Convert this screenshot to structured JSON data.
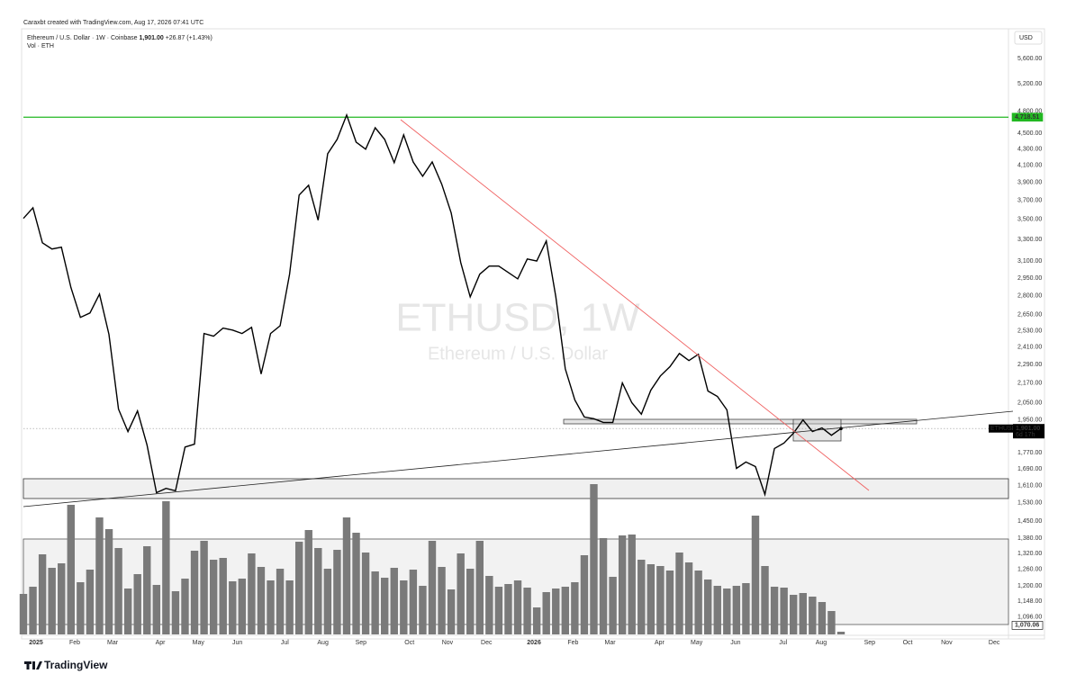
{
  "header": "Caraxbt created with TradingView.com, Aug 17, 2026 07:41 UTC",
  "footer": "TradingView",
  "chart_data": {
    "type": "line",
    "title": "Ethereum / U.S. Dollar · 1W · Coinbase",
    "last": "1,901.00",
    "change": "+26.87 (+1.43%)",
    "watermark": "ETHUSD, 1W",
    "watermark_subtitle": "Ethereum / U.S. Dollar",
    "currency": "USD",
    "log_scale": true,
    "ylim": [
      1042,
      6140
    ],
    "yticks": [
      {
        "value": 5600,
        "label": "5,600.00"
      },
      {
        "value": 5200,
        "label": "5,200.00"
      },
      {
        "value": 4800,
        "label": "4,800.00"
      },
      {
        "value": 4500,
        "label": "4,500.00"
      },
      {
        "value": 4300,
        "label": "4,300.00"
      },
      {
        "value": 4100,
        "label": "4,100.00"
      },
      {
        "value": 3900,
        "label": "3,900.00"
      },
      {
        "value": 3700,
        "label": "3,700.00"
      },
      {
        "value": 3500,
        "label": "3,500.00"
      },
      {
        "value": 3300,
        "label": "3,300.00"
      },
      {
        "value": 3100,
        "label": "3,100.00"
      },
      {
        "value": 2950,
        "label": "2,950.00"
      },
      {
        "value": 2800,
        "label": "2,800.00"
      },
      {
        "value": 2650,
        "label": "2,650.00"
      },
      {
        "value": 2530,
        "label": "2,530.00"
      },
      {
        "value": 2410,
        "label": "2,410.00"
      },
      {
        "value": 2290,
        "label": "2,290.00"
      },
      {
        "value": 2170,
        "label": "2,170.00"
      },
      {
        "value": 2050,
        "label": "2,050.00"
      },
      {
        "value": 1950,
        "label": "1,950.00"
      },
      {
        "value": 1770,
        "label": "1,770.00"
      },
      {
        "value": 1690,
        "label": "1,690.00"
      },
      {
        "value": 1610,
        "label": "1,610.00"
      },
      {
        "value": 1530,
        "label": "1,530.00"
      },
      {
        "value": 1450,
        "label": "1,450.00"
      },
      {
        "value": 1380,
        "label": "1,380.00"
      },
      {
        "value": 1320,
        "label": "1,320.00"
      },
      {
        "value": 1260,
        "label": "1,260.00"
      },
      {
        "value": 1200,
        "label": "1,200.00"
      },
      {
        "value": 1148,
        "label": "1,148.00"
      },
      {
        "value": 1096,
        "label": "1,096.00"
      }
    ],
    "xlim": [
      0,
      103.6
    ],
    "xticks": [
      {
        "value": 1.33,
        "label": "2025"
      },
      {
        "value": 5.4,
        "label": "Feb"
      },
      {
        "value": 9.38,
        "label": "Mar"
      },
      {
        "value": 14.4,
        "label": "Apr"
      },
      {
        "value": 18.4,
        "label": "May"
      },
      {
        "value": 22.5,
        "label": "Jun"
      },
      {
        "value": 27.5,
        "label": "Jul"
      },
      {
        "value": 31.5,
        "label": "Aug"
      },
      {
        "value": 35.5,
        "label": "Sep"
      },
      {
        "value": 40.6,
        "label": "Oct"
      },
      {
        "value": 44.6,
        "label": "Nov"
      },
      {
        "value": 48.7,
        "label": "Dec"
      },
      {
        "value": 53.7,
        "label": "2026"
      },
      {
        "value": 57.8,
        "label": "Feb"
      },
      {
        "value": 61.7,
        "label": "Mar"
      },
      {
        "value": 66.9,
        "label": "Apr"
      },
      {
        "value": 70.8,
        "label": "May"
      },
      {
        "value": 74.9,
        "label": "Jun"
      },
      {
        "value": 79.9,
        "label": "Jul"
      },
      {
        "value": 83.9,
        "label": "Aug"
      },
      {
        "value": 89.0,
        "label": "Sep"
      },
      {
        "value": 93.0,
        "label": "Oct"
      },
      {
        "value": 97.1,
        "label": "Nov"
      },
      {
        "value": 102.1,
        "label": "Dec"
      }
    ],
    "y2lim": [
      0,
      180
    ],
    "series": [
      {
        "name": "ETHUSD",
        "color": "#000000",
        "values": [
          3511,
          3622,
          3270,
          3211,
          3228,
          2869,
          2630,
          2664,
          2815,
          2502,
          2012,
          1884,
          2001,
          1811,
          1576,
          1596,
          1585,
          1801,
          1816,
          2509,
          2489,
          2549,
          2534,
          2509,
          2554,
          2229,
          2509,
          2566,
          2983,
          3758,
          3868,
          3493,
          4240,
          4422,
          4748,
          4388,
          4297,
          4575,
          4422,
          4131,
          4481,
          4140,
          3970,
          4140,
          3880,
          3567,
          3086,
          2792,
          2983,
          3055,
          3055,
          2998,
          2943,
          3119,
          3100,
          3287,
          2792,
          2263,
          2066,
          1966,
          1956,
          1935,
          1935,
          2171,
          2050,
          1982,
          2126,
          2216,
          2277,
          2367,
          2318,
          2361,
          2121,
          2088,
          2007,
          1692,
          1724,
          1701,
          1568,
          1793,
          1822,
          1875,
          1949,
          1884,
          1904,
          1864,
          1901
        ]
      },
      {
        "name": "Vol · ETH",
        "color": "#7a7a7a",
        "type": "bar",
        "axis": "y2",
        "values": [
          45,
          53,
          89,
          74,
          79,
          144,
          58,
          72,
          130,
          117,
          96,
          51,
          67,
          98,
          55,
          148,
          48,
          62,
          93,
          104,
          83,
          85,
          59,
          62,
          90,
          75,
          60,
          73,
          60,
          103,
          116,
          96,
          73,
          94,
          130,
          113,
          91,
          70,
          63,
          74,
          60,
          72,
          54,
          104,
          75,
          50,
          90,
          73,
          104,
          65,
          53,
          56,
          60,
          52,
          30,
          47,
          51,
          53,
          58,
          88,
          167,
          107,
          64,
          110,
          111,
          83,
          78,
          76,
          71,
          91,
          80,
          71,
          61,
          54,
          51,
          54,
          57,
          132,
          76,
          53,
          52,
          44,
          46,
          42,
          36,
          26,
          3
        ]
      }
    ],
    "levels": [
      {
        "value": 4718.51,
        "label": "4,718.51",
        "color": "#22b822"
      },
      {
        "value": 1070.06,
        "label": "1,070.06",
        "color": "#000000"
      }
    ],
    "price_label": {
      "value": 1901,
      "label": "1,901.00",
      "countdown": "6d 17h"
    }
  }
}
